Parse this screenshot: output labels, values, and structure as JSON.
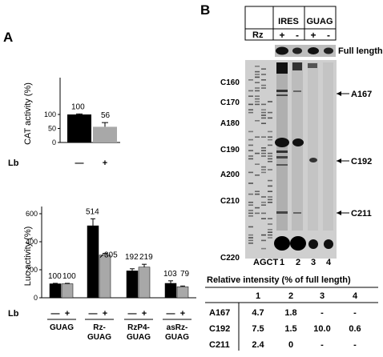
{
  "panelA": {
    "label": "A",
    "cat": {
      "ylabel": "CAT activity (%)",
      "xlabel": "Lb",
      "ticks": [
        "0",
        "50",
        "100"
      ],
      "cond": [
        "—",
        "+"
      ],
      "bars": [
        {
          "cond": "—",
          "value": 100,
          "label": "100",
          "err": 2
        },
        {
          "cond": "+",
          "value": 56,
          "label": "56",
          "err": 15
        }
      ]
    },
    "luc": {
      "ylabel": "Luc activity (%)",
      "xlabel": "Lb",
      "ticks": [
        "0",
        "200",
        "400",
        "600"
      ],
      "groups": [
        {
          "name": "GUAG",
          "minus": 100,
          "plus": 100,
          "minus_label": "100",
          "plus_label": "100",
          "minus_err": 3,
          "plus_err": 3
        },
        {
          "name": "Rz-\nGUAG",
          "minus": 514,
          "plus": 305,
          "minus_label": "514",
          "plus_label": "305",
          "minus_err": 50,
          "plus_err": 12
        },
        {
          "name": "RzP4-\nGUAG",
          "minus": 192,
          "plus": 219,
          "minus_label": "192",
          "plus_label": "219",
          "minus_err": 15,
          "plus_err": 20
        },
        {
          "name": "asRz-\nGUAG",
          "minus": 103,
          "plus": 79,
          "minus_label": "103",
          "plus_label": "79",
          "minus_err": 18,
          "plus_err": 5
        }
      ],
      "cond": [
        "—",
        "+"
      ]
    }
  },
  "panelB": {
    "label": "B",
    "header": {
      "rz": "Rz",
      "ires": "IRES",
      "guag": "GUAG",
      "signs": [
        "+",
        "-",
        "+",
        "-"
      ]
    },
    "full_length": "Full length",
    "left_markers": [
      "C160",
      "C170",
      "A180",
      "C190",
      "A200",
      "C210",
      "C220"
    ],
    "right_markers": [
      "A167",
      "C192",
      "C211"
    ],
    "seq_label": "AGCT",
    "lanes": [
      "1",
      "2",
      "3",
      "4"
    ],
    "table": {
      "title": "Relative intensity (% of full length)",
      "cols": [
        "1",
        "2",
        "3",
        "4"
      ],
      "rows": [
        {
          "name": "A167",
          "vals": [
            "4.7",
            "1.8",
            "-",
            "-"
          ]
        },
        {
          "name": "C192",
          "vals": [
            "7.5",
            "1.5",
            "10.0",
            "0.6"
          ]
        },
        {
          "name": "C211",
          "vals": [
            "2.4",
            "0",
            "-",
            "-"
          ]
        }
      ]
    }
  }
}
